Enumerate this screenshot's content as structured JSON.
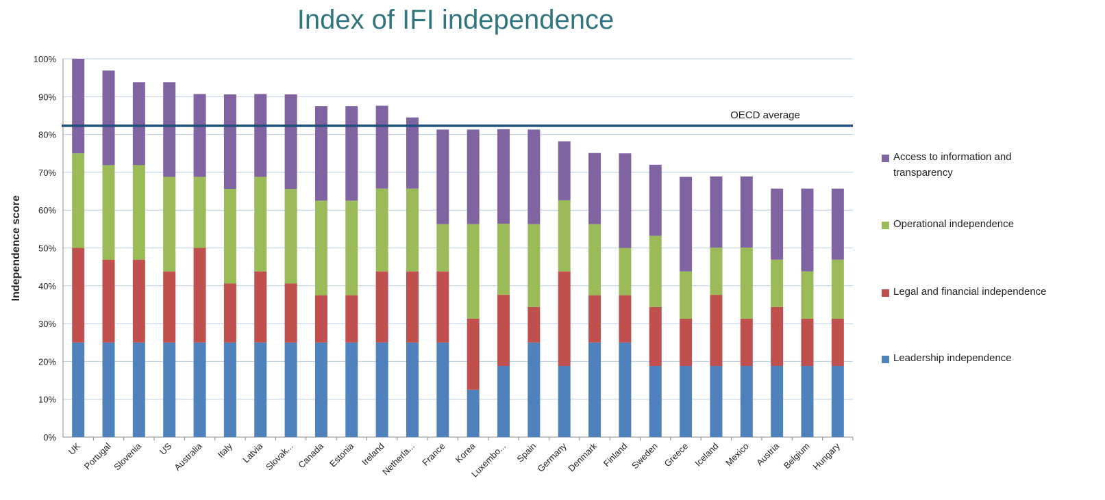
{
  "chart_data": {
    "type": "stacked_bar",
    "title": "Index of IFI independence",
    "ylabel": "Independence score",
    "categories": [
      "UK",
      "Portugal",
      "Slovenia",
      "US",
      "Australia",
      "Italy",
      "Latvia",
      "Slovak...",
      "Canada",
      "Estonia",
      "Ireland",
      "Netherla...",
      "France",
      "Korea",
      "Luxembo...",
      "Spain",
      "Germany",
      "Denmark",
      "Finland",
      "Sweden",
      "Greece",
      "Iceland",
      "Mexico",
      "Austria",
      "Belgium",
      "Hungary"
    ],
    "series": [
      {
        "name": "Leadership independence",
        "color": "#4f81bd",
        "values": [
          25,
          25,
          25,
          25,
          25,
          25,
          25,
          25,
          25,
          25,
          25,
          25,
          25,
          12.5,
          18.8,
          25,
          18.8,
          25,
          25,
          18.8,
          18.8,
          18.8,
          18.8,
          18.8,
          18.8,
          18.8
        ]
      },
      {
        "name": "Legal and financial independence",
        "color": "#c0504d",
        "values": [
          25,
          21.9,
          21.9,
          18.8,
          25,
          15.6,
          18.8,
          15.6,
          12.5,
          12.5,
          18.8,
          18.8,
          18.8,
          18.8,
          18.8,
          9.4,
          25,
          12.5,
          12.5,
          15.6,
          12.5,
          18.8,
          12.5,
          15.6,
          12.5,
          12.5
        ]
      },
      {
        "name": "Operational independence",
        "color": "#9bbb59",
        "values": [
          25,
          25,
          25,
          25,
          18.8,
          25,
          25,
          25,
          25,
          25,
          21.9,
          21.9,
          12.5,
          25,
          18.8,
          21.9,
          18.8,
          18.8,
          12.5,
          18.8,
          12.5,
          12.5,
          18.8,
          12.5,
          12.5,
          15.6
        ]
      },
      {
        "name": "Access to information and transparency",
        "color": "#8064a2",
        "values": [
          25,
          25,
          21.9,
          25,
          21.9,
          25,
          21.9,
          25,
          25,
          25,
          21.9,
          18.8,
          25,
          25,
          25,
          25,
          15.6,
          18.8,
          25,
          18.8,
          25,
          18.8,
          18.8,
          18.8,
          21.9,
          18.8
        ]
      }
    ],
    "ylim": [
      0,
      100
    ],
    "yticks": [
      {
        "value": 0,
        "label": "0%"
      },
      {
        "value": 10,
        "label": "10%"
      },
      {
        "value": 20,
        "label": "20%"
      },
      {
        "value": 30,
        "label": "30%"
      },
      {
        "value": 40,
        "label": "40%"
      },
      {
        "value": 50,
        "label": "50%"
      },
      {
        "value": 60,
        "label": "60%"
      },
      {
        "value": 70,
        "label": "70%"
      },
      {
        "value": 80,
        "label": "80%"
      },
      {
        "value": 90,
        "label": "90%"
      },
      {
        "value": 100,
        "label": "100%"
      }
    ],
    "grid": true,
    "annotations": [
      {
        "text": "OECD average",
        "value": 82.3,
        "color": "#1f4e79"
      }
    ]
  }
}
